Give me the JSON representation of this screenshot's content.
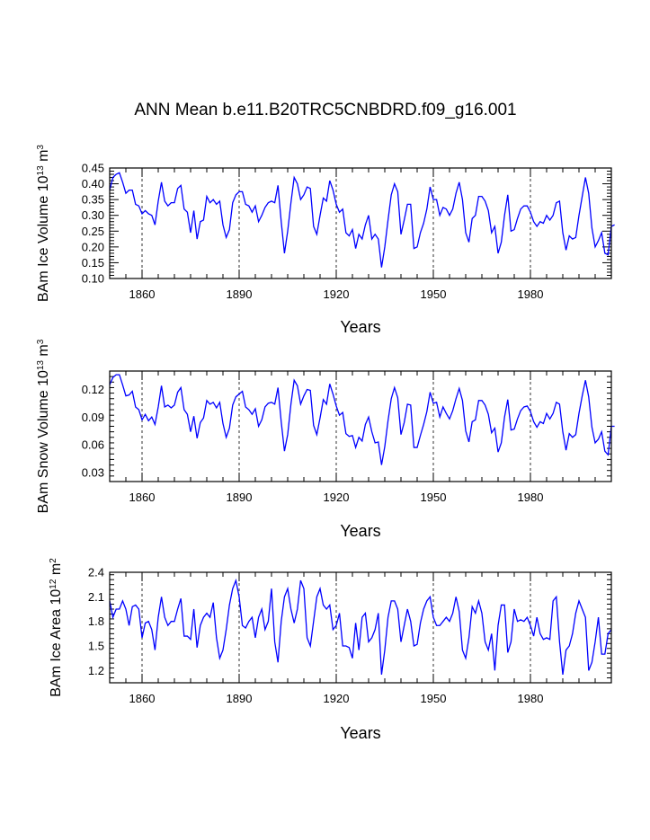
{
  "title": "ANN Mean b.e11.B20TRC5CNBDRD.f09_g16.001",
  "chart_data": [
    {
      "type": "line",
      "name": "ice-volume",
      "ylabel": {
        "main": "BAm Ice Volume 10",
        "sup1": "13",
        "mid": " m",
        "sup2": "3"
      },
      "xlabel": "Years",
      "xlim": [
        1850,
        2005
      ],
      "ylim": [
        0.1,
        0.45
      ],
      "yticks": [
        "0.10",
        "0.15",
        "0.20",
        "0.25",
        "0.30",
        "0.35",
        "0.40",
        "0.45"
      ],
      "xticks": [
        "1860",
        "1890",
        "1920",
        "1950",
        "1980"
      ],
      "color": "#0000ff",
      "x_start": 1850,
      "values": [
        0.38,
        0.42,
        0.43,
        0.435,
        0.405,
        0.37,
        0.38,
        0.38,
        0.335,
        0.33,
        0.305,
        0.315,
        0.305,
        0.3,
        0.27,
        0.345,
        0.405,
        0.345,
        0.33,
        0.34,
        0.34,
        0.385,
        0.395,
        0.32,
        0.31,
        0.245,
        0.315,
        0.225,
        0.28,
        0.285,
        0.36,
        0.34,
        0.35,
        0.335,
        0.345,
        0.27,
        0.23,
        0.255,
        0.34,
        0.365,
        0.375,
        0.375,
        0.335,
        0.33,
        0.31,
        0.33,
        0.28,
        0.3,
        0.325,
        0.34,
        0.345,
        0.34,
        0.395,
        0.28,
        0.18,
        0.25,
        0.34,
        0.42,
        0.4,
        0.35,
        0.365,
        0.39,
        0.385,
        0.265,
        0.24,
        0.3,
        0.355,
        0.345,
        0.41,
        0.38,
        0.335,
        0.31,
        0.32,
        0.245,
        0.235,
        0.255,
        0.195,
        0.24,
        0.225,
        0.27,
        0.3,
        0.225,
        0.24,
        0.225,
        0.135,
        0.2,
        0.285,
        0.365,
        0.4,
        0.375,
        0.24,
        0.285,
        0.335,
        0.335,
        0.195,
        0.2,
        0.245,
        0.275,
        0.32,
        0.39,
        0.35,
        0.35,
        0.3,
        0.325,
        0.32,
        0.3,
        0.32,
        0.37,
        0.405,
        0.35,
        0.245,
        0.215,
        0.29,
        0.3,
        0.36,
        0.36,
        0.345,
        0.315,
        0.245,
        0.265,
        0.18,
        0.215,
        0.3,
        0.365,
        0.25,
        0.255,
        0.29,
        0.32,
        0.33,
        0.33,
        0.31,
        0.28,
        0.265,
        0.28,
        0.275,
        0.3,
        0.285,
        0.3,
        0.34,
        0.345,
        0.245,
        0.19,
        0.235,
        0.225,
        0.23,
        0.3,
        0.36,
        0.42,
        0.37,
        0.26,
        0.2,
        0.22,
        0.245,
        0.18,
        0.175,
        0.265,
        0.27
      ]
    },
    {
      "type": "line",
      "name": "snow-volume",
      "ylabel": {
        "main": "BAm Snow Volume 10",
        "sup1": "13",
        "mid": " m",
        "sup2": "3"
      },
      "xlabel": "Years",
      "xlim": [
        1850,
        2005
      ],
      "ylim": [
        0.02,
        0.14
      ],
      "yticks": [
        "0.03",
        "0.06",
        "0.09",
        "0.12"
      ],
      "xticks": [
        "1860",
        "1890",
        "1920",
        "1950",
        "1980"
      ],
      "color": "#0000ff",
      "x_start": 1850,
      "values": [
        0.125,
        0.133,
        0.136,
        0.136,
        0.125,
        0.113,
        0.114,
        0.118,
        0.101,
        0.098,
        0.087,
        0.093,
        0.086,
        0.09,
        0.082,
        0.101,
        0.124,
        0.101,
        0.103,
        0.1,
        0.103,
        0.117,
        0.122,
        0.098,
        0.093,
        0.074,
        0.091,
        0.067,
        0.084,
        0.089,
        0.108,
        0.104,
        0.106,
        0.1,
        0.106,
        0.083,
        0.068,
        0.078,
        0.103,
        0.112,
        0.115,
        0.118,
        0.101,
        0.098,
        0.093,
        0.099,
        0.08,
        0.087,
        0.101,
        0.105,
        0.106,
        0.104,
        0.122,
        0.085,
        0.053,
        0.071,
        0.104,
        0.13,
        0.124,
        0.104,
        0.113,
        0.12,
        0.119,
        0.081,
        0.071,
        0.089,
        0.109,
        0.104,
        0.126,
        0.115,
        0.102,
        0.092,
        0.095,
        0.072,
        0.069,
        0.07,
        0.057,
        0.068,
        0.064,
        0.082,
        0.09,
        0.074,
        0.062,
        0.063,
        0.038,
        0.058,
        0.086,
        0.11,
        0.122,
        0.111,
        0.071,
        0.084,
        0.104,
        0.103,
        0.057,
        0.057,
        0.07,
        0.082,
        0.096,
        0.117,
        0.105,
        0.106,
        0.09,
        0.101,
        0.094,
        0.088,
        0.097,
        0.11,
        0.121,
        0.108,
        0.075,
        0.063,
        0.085,
        0.087,
        0.108,
        0.108,
        0.103,
        0.093,
        0.073,
        0.078,
        0.052,
        0.062,
        0.09,
        0.109,
        0.076,
        0.077,
        0.088,
        0.097,
        0.101,
        0.102,
        0.096,
        0.085,
        0.079,
        0.085,
        0.083,
        0.094,
        0.088,
        0.094,
        0.106,
        0.104,
        0.074,
        0.054,
        0.072,
        0.068,
        0.071,
        0.094,
        0.113,
        0.13,
        0.112,
        0.079,
        0.062,
        0.066,
        0.074,
        0.053,
        0.049,
        0.08,
        0.08
      ]
    },
    {
      "type": "line",
      "name": "ice-area",
      "ylabel": {
        "main": "BAm Ice Area 10",
        "sup1": "12",
        "mid": " m",
        "sup2": "2"
      },
      "xlabel": "Years",
      "xlim": [
        1850,
        2005
      ],
      "ylim": [
        1.05,
        2.4
      ],
      "yticks": [
        "1.2",
        "1.5",
        "1.8",
        "2.1",
        "2.4"
      ],
      "xticks": [
        "1860",
        "1890",
        "1920",
        "1950",
        "1980"
      ],
      "color": "#0000ff",
      "x_start": 1850,
      "values": [
        2.05,
        1.85,
        1.95,
        1.95,
        2.05,
        1.95,
        1.75,
        1.98,
        2.0,
        1.95,
        1.6,
        1.78,
        1.8,
        1.7,
        1.45,
        1.85,
        2.1,
        1.85,
        1.75,
        1.8,
        1.8,
        1.95,
        2.08,
        1.62,
        1.62,
        1.58,
        1.95,
        1.48,
        1.75,
        1.85,
        1.9,
        1.85,
        2.03,
        1.6,
        1.35,
        1.45,
        1.7,
        2.0,
        2.2,
        2.3,
        2.1,
        1.75,
        1.72,
        1.8,
        1.85,
        1.6,
        1.85,
        1.95,
        1.7,
        1.8,
        2.2,
        1.55,
        1.3,
        1.8,
        2.1,
        2.2,
        1.95,
        1.78,
        1.95,
        2.3,
        2.2,
        1.6,
        1.5,
        1.8,
        2.1,
        2.2,
        2.0,
        1.95,
        2.0,
        1.7,
        1.75,
        1.9,
        1.5,
        1.5,
        1.48,
        1.35,
        1.78,
        1.45,
        1.85,
        1.9,
        1.55,
        1.6,
        1.7,
        1.9,
        1.15,
        1.45,
        1.85,
        2.05,
        2.05,
        1.95,
        1.55,
        1.75,
        1.95,
        1.8,
        1.5,
        1.52,
        1.78,
        1.95,
        2.05,
        2.1,
        1.85,
        1.75,
        1.75,
        1.8,
        1.85,
        1.8,
        1.9,
        2.1,
        1.92,
        1.45,
        1.35,
        1.6,
        1.98,
        1.9,
        2.05,
        1.9,
        1.55,
        1.45,
        1.65,
        1.2,
        1.75,
        2.0,
        2.0,
        1.42,
        1.55,
        1.95,
        1.8,
        1.82,
        1.8,
        1.85,
        1.75,
        1.62,
        1.85,
        1.65,
        1.58,
        1.6,
        1.58,
        2.05,
        2.1,
        1.55,
        1.15,
        1.45,
        1.5,
        1.65,
        1.9,
        2.05,
        1.95,
        1.85,
        1.2,
        1.3,
        1.55,
        1.85,
        1.4,
        1.4,
        1.65,
        1.7
      ]
    }
  ]
}
